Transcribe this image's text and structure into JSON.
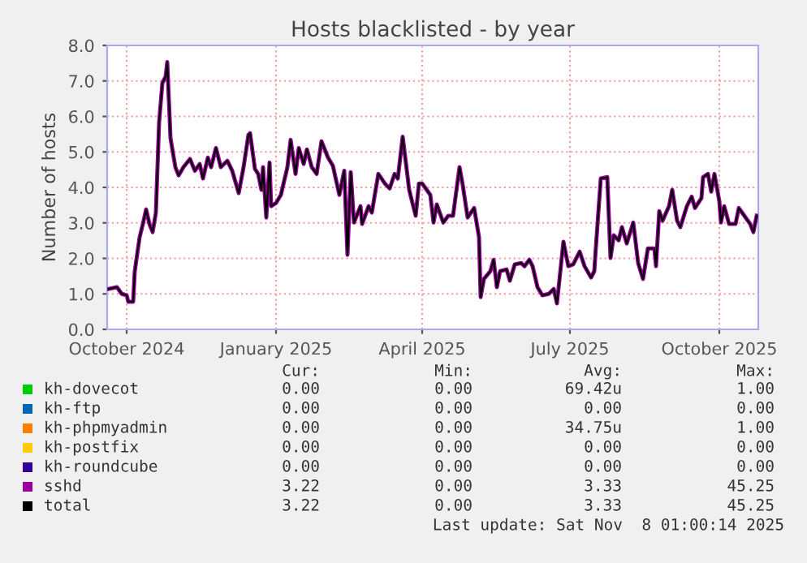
{
  "chart_data": {
    "type": "line",
    "title": "Hosts blacklisted - by year",
    "ylabel": "Number of hosts",
    "x": [
      "2024-10-04",
      "2024-10-09",
      "2024-10-12",
      "2024-10-15",
      "2024-10-16",
      "2024-10-19",
      "2024-10-20",
      "2024-10-23",
      "2024-10-25",
      "2024-10-27",
      "2024-10-29",
      "2024-10-31",
      "2024-11-02",
      "2024-11-04",
      "2024-11-06",
      "2024-11-08",
      "2024-11-09",
      "2024-11-11",
      "2024-11-14",
      "2024-11-16",
      "2024-11-19",
      "2024-11-23",
      "2024-11-26",
      "2024-11-29",
      "2024-12-01",
      "2024-12-04",
      "2024-12-06",
      "2024-12-09",
      "2024-12-12",
      "2024-12-16",
      "2024-12-19",
      "2024-12-23",
      "2024-12-26",
      "2024-12-29",
      "2024-12-30",
      "2025-01-02",
      "2025-01-04",
      "2025-01-06",
      "2025-01-07",
      "2025-01-09",
      "2025-01-11",
      "2025-01-12",
      "2025-01-15",
      "2025-01-18",
      "2025-01-22",
      "2025-01-24",
      "2025-01-27",
      "2025-01-29",
      "2025-02-01",
      "2025-02-03",
      "2025-02-06",
      "2025-02-09",
      "2025-02-12",
      "2025-02-16",
      "2025-02-19",
      "2025-02-23",
      "2025-02-26",
      "2025-02-28",
      "2025-03-02",
      "2025-03-04",
      "2025-03-08",
      "2025-03-09",
      "2025-03-13",
      "2025-03-15",
      "2025-03-19",
      "2025-03-23",
      "2025-03-26",
      "2025-03-29",
      "2025-03-31",
      "2025-04-03",
      "2025-04-07",
      "2025-04-11",
      "2025-04-13",
      "2025-04-15",
      "2025-04-20",
      "2025-04-22",
      "2025-04-24",
      "2025-04-28",
      "2025-05-01",
      "2025-05-04",
      "2025-05-08",
      "2025-05-10",
      "2025-05-13",
      "2025-05-17",
      "2025-05-20",
      "2025-05-21",
      "2025-05-23",
      "2025-05-27",
      "2025-05-29",
      "2025-05-31",
      "2025-06-02",
      "2025-06-06",
      "2025-06-08",
      "2025-06-11",
      "2025-06-15",
      "2025-06-17",
      "2025-06-20",
      "2025-06-22",
      "2025-06-25",
      "2025-06-28",
      "2025-07-02",
      "2025-07-05",
      "2025-07-07",
      "2025-07-11",
      "2025-07-14",
      "2025-07-17",
      "2025-07-21",
      "2025-07-24",
      "2025-07-28",
      "2025-07-30",
      "2025-07-31",
      "2025-08-03",
      "2025-08-07",
      "2025-08-09",
      "2025-08-11",
      "2025-08-14",
      "2025-08-16",
      "2025-08-19",
      "2025-08-23",
      "2025-08-26",
      "2025-08-29",
      "2025-09-01",
      "2025-09-05",
      "2025-09-06",
      "2025-09-08",
      "2025-09-10",
      "2025-09-14",
      "2025-09-16",
      "2025-09-19",
      "2025-09-21",
      "2025-09-25",
      "2025-09-28",
      "2025-09-30",
      "2025-10-04",
      "2025-10-05",
      "2025-10-08",
      "2025-10-10",
      "2025-10-12",
      "2025-10-15",
      "2025-10-16",
      "2025-10-18",
      "2025-10-21",
      "2025-10-25",
      "2025-10-27",
      "2025-10-29",
      "2025-11-03",
      "2025-11-05",
      "2025-11-07"
    ],
    "series": [
      {
        "name": "kh-dovecot",
        "color": "#00cc00",
        "values": [
          null,
          null,
          null,
          null,
          null,
          null,
          null,
          null,
          null,
          null,
          null,
          null,
          null,
          null,
          null,
          null,
          null,
          null,
          null,
          null,
          null,
          null,
          null,
          null,
          null,
          null,
          null,
          null,
          null,
          null,
          null,
          null,
          null,
          null,
          null,
          null,
          null,
          null,
          null,
          null,
          null,
          null,
          null,
          null,
          null,
          null,
          null,
          null,
          null,
          null,
          null,
          null,
          null,
          null,
          null,
          null,
          null,
          null,
          null,
          null,
          null,
          null,
          null,
          null,
          null,
          null,
          null,
          null,
          null,
          null,
          null,
          null,
          null,
          null,
          null,
          null,
          null,
          null,
          null,
          null,
          null,
          null,
          null,
          null,
          null,
          null,
          null,
          null,
          null,
          null,
          null,
          null,
          null,
          null,
          null,
          null,
          null,
          null,
          null,
          null,
          null,
          null,
          null,
          null,
          null,
          null,
          null,
          null,
          null,
          null,
          null,
          null,
          null,
          null,
          null,
          null,
          null,
          null,
          null,
          null,
          null,
          null,
          null,
          null,
          null,
          null,
          null,
          null,
          null,
          null,
          null,
          null,
          null,
          null,
          null,
          null,
          null,
          null,
          null,
          null,
          null,
          null,
          null,
          null,
          null,
          null,
          null,
          null
        ]
      },
      {
        "name": "kh-ftp",
        "color": "#0066b3",
        "values": [
          null,
          null,
          null,
          null,
          null,
          null,
          null,
          null,
          null,
          null,
          null,
          null,
          null,
          null,
          null,
          null,
          null,
          null,
          null,
          null,
          null,
          null,
          null,
          null,
          null,
          null,
          null,
          null,
          null,
          null,
          null,
          null,
          null,
          null,
          null,
          null,
          null,
          null,
          null,
          null,
          null,
          null,
          null,
          null,
          null,
          null,
          null,
          null,
          null,
          null,
          null,
          null,
          null,
          null,
          null,
          null,
          null,
          null,
          null,
          null,
          null,
          null,
          null,
          null,
          null,
          null,
          null,
          null,
          null,
          null,
          null,
          null,
          null,
          null,
          null,
          null,
          null,
          null,
          null,
          null,
          null,
          null,
          null,
          null,
          null,
          null,
          null,
          null,
          null,
          null,
          null,
          null,
          null,
          null,
          null,
          null,
          null,
          null,
          null,
          null,
          null,
          null,
          null,
          null,
          null,
          null,
          null,
          null,
          null,
          null,
          null,
          null,
          null,
          null,
          null,
          null,
          null,
          null,
          null,
          null,
          null,
          null,
          null,
          null,
          null,
          null,
          null,
          null,
          null,
          null,
          null,
          null,
          null,
          null,
          null,
          null,
          null,
          null,
          null,
          null,
          null,
          null,
          null,
          null,
          null,
          null,
          null,
          null
        ]
      },
      {
        "name": "kh-phpmyadmin",
        "color": "#ff8000",
        "values": [
          null,
          null,
          null,
          null,
          null,
          null,
          null,
          null,
          null,
          null,
          null,
          null,
          null,
          null,
          null,
          null,
          null,
          null,
          null,
          null,
          null,
          null,
          null,
          null,
          null,
          null,
          null,
          null,
          null,
          null,
          null,
          null,
          null,
          null,
          null,
          null,
          null,
          null,
          null,
          null,
          null,
          null,
          null,
          null,
          null,
          null,
          null,
          null,
          null,
          null,
          null,
          null,
          null,
          null,
          null,
          null,
          null,
          null,
          null,
          null,
          null,
          null,
          null,
          null,
          null,
          null,
          null,
          null,
          null,
          null,
          null,
          null,
          null,
          null,
          null,
          null,
          null,
          null,
          null,
          null,
          null,
          null,
          null,
          null,
          null,
          null,
          null,
          null,
          null,
          null,
          null,
          null,
          null,
          null,
          null,
          null,
          null,
          null,
          null,
          null,
          null,
          null,
          null,
          null,
          null,
          null,
          null,
          null,
          null,
          null,
          null,
          null,
          null,
          null,
          null,
          null,
          null,
          null,
          null,
          null,
          null,
          null,
          null,
          null,
          null,
          null,
          null,
          null,
          null,
          null,
          null,
          null,
          null,
          null,
          null,
          null,
          null,
          null,
          null,
          null,
          null,
          null,
          null,
          null,
          null,
          null,
          null,
          null
        ]
      },
      {
        "name": "kh-postfix",
        "color": "#ffcc00",
        "values": [
          null,
          null,
          null,
          null,
          null,
          null,
          null,
          null,
          null,
          null,
          null,
          null,
          null,
          null,
          null,
          null,
          null,
          null,
          null,
          null,
          null,
          null,
          null,
          null,
          null,
          null,
          null,
          null,
          null,
          null,
          null,
          null,
          null,
          null,
          null,
          null,
          null,
          null,
          null,
          null,
          null,
          null,
          null,
          null,
          null,
          null,
          null,
          null,
          null,
          null,
          null,
          null,
          null,
          null,
          null,
          null,
          null,
          null,
          null,
          null,
          null,
          null,
          null,
          null,
          null,
          null,
          null,
          null,
          null,
          null,
          null,
          null,
          null,
          null,
          null,
          null,
          null,
          null,
          null,
          null,
          null,
          null,
          null,
          null,
          null,
          null,
          null,
          null,
          null,
          null,
          null,
          null,
          null,
          null,
          null,
          null,
          null,
          null,
          null,
          null,
          null,
          null,
          null,
          null,
          null,
          null,
          null,
          null,
          null,
          null,
          null,
          null,
          null,
          null,
          null,
          null,
          null,
          null,
          null,
          null,
          null,
          null,
          null,
          null,
          null,
          null,
          null,
          null,
          null,
          null,
          null,
          null,
          null,
          null,
          null,
          null,
          null,
          null,
          null,
          null,
          null,
          null,
          null,
          null,
          null,
          null,
          null,
          null
        ]
      },
      {
        "name": "kh-roundcube",
        "color": "#330099",
        "values": [
          null,
          null,
          null,
          null,
          null,
          null,
          null,
          null,
          null,
          null,
          null,
          null,
          null,
          null,
          null,
          null,
          null,
          null,
          null,
          null,
          null,
          null,
          null,
          null,
          null,
          null,
          null,
          null,
          null,
          null,
          null,
          null,
          null,
          null,
          null,
          null,
          null,
          null,
          null,
          null,
          null,
          null,
          null,
          null,
          null,
          null,
          null,
          null,
          null,
          null,
          null,
          null,
          null,
          null,
          null,
          null,
          null,
          null,
          null,
          null,
          null,
          null,
          null,
          null,
          null,
          null,
          null,
          null,
          null,
          null,
          null,
          null,
          null,
          null,
          null,
          null,
          null,
          null,
          null,
          null,
          null,
          null,
          null,
          null,
          null,
          null,
          null,
          null,
          null,
          null,
          null,
          null,
          null,
          null,
          null,
          null,
          null,
          null,
          null,
          null,
          null,
          null,
          null,
          null,
          null,
          null,
          null,
          null,
          null,
          null,
          null,
          null,
          null,
          null,
          null,
          null,
          null,
          null,
          null,
          null,
          null,
          null,
          null,
          null,
          null,
          null,
          null,
          null,
          null,
          null,
          null,
          null,
          null,
          null,
          null,
          null,
          null,
          null,
          null,
          null,
          null,
          null,
          null,
          null,
          null,
          null,
          null,
          null
        ]
      },
      {
        "name": "sshd",
        "color": "#990099",
        "values": [
          1.14,
          1.19,
          1.0,
          0.96,
          0.78,
          0.78,
          1.64,
          2.6,
          2.97,
          3.38,
          2.97,
          2.74,
          3.29,
          5.84,
          6.94,
          7.12,
          7.53,
          5.39,
          4.57,
          4.34,
          4.57,
          4.8,
          4.47,
          4.66,
          4.25,
          4.84,
          4.57,
          5.11,
          4.57,
          4.75,
          4.47,
          3.84,
          4.57,
          5.48,
          5.53,
          4.52,
          4.38,
          3.93,
          4.57,
          3.15,
          4.7,
          3.47,
          3.56,
          3.79,
          4.57,
          5.34,
          4.38,
          5.11,
          4.66,
          5.07,
          4.57,
          4.38,
          5.3,
          4.84,
          4.61,
          3.79,
          4.47,
          2.1,
          4.43,
          3.01,
          3.47,
          2.97,
          3.47,
          3.29,
          4.38,
          4.11,
          3.97,
          4.38,
          4.25,
          5.43,
          3.93,
          3.2,
          4.11,
          4.11,
          3.79,
          3.01,
          3.52,
          3.01,
          3.2,
          3.2,
          4.57,
          4.06,
          3.15,
          3.42,
          2.6,
          0.91,
          1.42,
          1.64,
          1.96,
          1.19,
          1.64,
          1.69,
          1.37,
          1.83,
          1.87,
          1.78,
          1.96,
          1.78,
          1.19,
          0.96,
          1.0,
          1.14,
          0.73,
          2.47,
          1.78,
          1.83,
          2.19,
          1.78,
          1.46,
          1.64,
          2.33,
          4.25,
          4.29,
          2.01,
          2.65,
          2.51,
          2.88,
          2.42,
          3.01,
          1.87,
          1.42,
          2.28,
          2.28,
          1.78,
          3.33,
          3.06,
          3.47,
          3.93,
          3.06,
          2.88,
          3.47,
          3.74,
          3.42,
          3.7,
          4.29,
          4.38,
          3.88,
          4.38,
          3.61,
          3.01,
          3.47,
          2.97,
          2.97,
          3.42,
          3.29,
          2.97,
          2.74,
          3.2
        ]
      },
      {
        "name": "total",
        "color": "#000000",
        "values": [
          1.14,
          1.19,
          1.0,
          0.96,
          0.78,
          0.78,
          1.64,
          2.6,
          2.97,
          3.38,
          2.97,
          2.74,
          3.29,
          5.84,
          6.94,
          7.12,
          7.53,
          5.39,
          4.57,
          4.34,
          4.57,
          4.8,
          4.47,
          4.66,
          4.25,
          4.84,
          4.57,
          5.11,
          4.57,
          4.75,
          4.47,
          3.84,
          4.57,
          5.48,
          5.53,
          4.52,
          4.38,
          3.93,
          4.57,
          3.15,
          4.7,
          3.47,
          3.56,
          3.79,
          4.57,
          5.34,
          4.38,
          5.11,
          4.66,
          5.07,
          4.57,
          4.38,
          5.3,
          4.84,
          4.61,
          3.79,
          4.47,
          2.1,
          4.43,
          3.01,
          3.47,
          2.97,
          3.47,
          3.29,
          4.38,
          4.11,
          3.97,
          4.38,
          4.25,
          5.43,
          3.93,
          3.2,
          4.11,
          4.11,
          3.79,
          3.01,
          3.52,
          3.01,
          3.2,
          3.2,
          4.57,
          4.06,
          3.15,
          3.42,
          2.6,
          0.91,
          1.42,
          1.64,
          1.96,
          1.19,
          1.64,
          1.69,
          1.37,
          1.83,
          1.87,
          1.78,
          1.96,
          1.78,
          1.19,
          0.96,
          1.0,
          1.14,
          0.73,
          2.47,
          1.78,
          1.83,
          2.19,
          1.78,
          1.46,
          1.64,
          2.33,
          4.25,
          4.29,
          2.01,
          2.65,
          2.51,
          2.88,
          2.42,
          3.01,
          1.87,
          1.42,
          2.28,
          2.28,
          1.78,
          3.33,
          3.06,
          3.47,
          3.93,
          3.06,
          2.88,
          3.47,
          3.74,
          3.42,
          3.7,
          4.29,
          4.38,
          3.88,
          4.38,
          3.61,
          3.01,
          3.47,
          2.97,
          2.97,
          3.42,
          3.29,
          2.97,
          2.74,
          3.2
        ]
      }
    ],
    "xlim": [
      "2024-10-03",
      "2025-11-08"
    ],
    "xticks": [
      {
        "value": "2024-10-15",
        "label": "October 2024"
      },
      {
        "value": "2025-01-15",
        "label": "January 2025"
      },
      {
        "value": "2025-04-15",
        "label": "April 2025"
      },
      {
        "value": "2025-07-15",
        "label": "July 2025"
      },
      {
        "value": "2025-10-15",
        "label": "October 2025"
      }
    ],
    "ylim": [
      0,
      8
    ],
    "yticks": [
      {
        "value": 0,
        "label": "0.0"
      },
      {
        "value": 1,
        "label": "1.0"
      },
      {
        "value": 2,
        "label": "2.0"
      },
      {
        "value": 3,
        "label": "3.0"
      },
      {
        "value": 4,
        "label": "4.0"
      },
      {
        "value": 5,
        "label": "5.0"
      },
      {
        "value": 6,
        "label": "6.0"
      },
      {
        "value": 7,
        "label": "7.0"
      },
      {
        "value": 8,
        "label": "8.0"
      }
    ],
    "grid": true,
    "legend": "bottom",
    "marker": "none",
    "line_style": "solid",
    "annotations": [
      "Cur:",
      "Min:",
      "Avg:",
      "Max:",
      "0.00",
      "0.00",
      "69.42u",
      "1.00",
      "0.00",
      "0.00",
      "0.00",
      "0.00",
      "0.00",
      "0.00",
      "34.75u",
      "1.00",
      "0.00",
      "0.00",
      "0.00",
      "0.00",
      "0.00",
      "0.00",
      "0.00",
      "0.00",
      "3.22",
      "0.00",
      "3.33",
      "45.25",
      "3.22",
      "0.00",
      "3.33",
      "45.25",
      "Last update: Sat Nov  8 01:00:14 2025"
    ]
  }
}
